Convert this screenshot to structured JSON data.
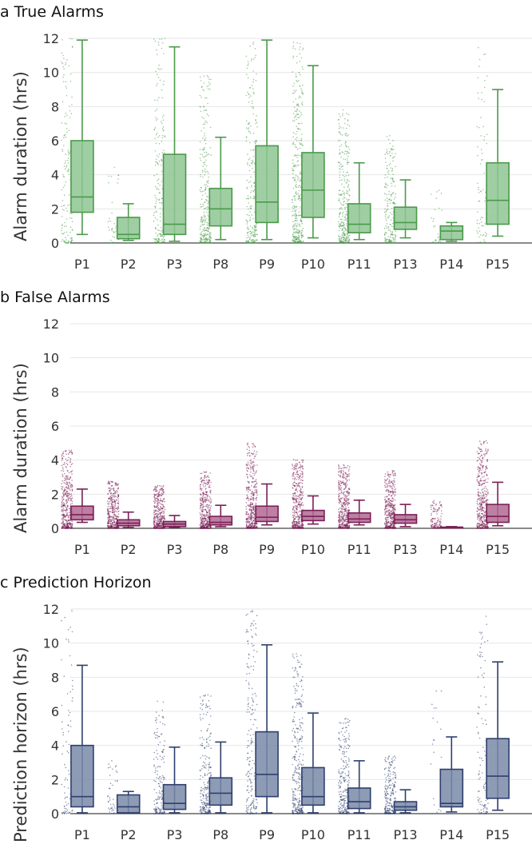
{
  "chart_data": [
    {
      "type": "box",
      "title": "a True Alarms",
      "ylabel": "Alarm duration (hrs)",
      "ylim": [
        0,
        12
      ],
      "yticks": [
        0,
        2,
        4,
        6,
        8,
        10,
        12
      ],
      "color": "#4a9a4a",
      "fill": "#8fc693",
      "categories": [
        "P1",
        "P2",
        "P3",
        "P8",
        "P9",
        "P10",
        "P11",
        "P13",
        "P14",
        "P15"
      ],
      "boxes": [
        {
          "whisker_low": 0.5,
          "q1": 1.8,
          "median": 2.7,
          "q3": 6.0,
          "whisker_high": 11.9
        },
        {
          "whisker_low": 0.15,
          "q1": 0.25,
          "median": 0.5,
          "q3": 1.5,
          "whisker_high": 2.3
        },
        {
          "whisker_low": 0.1,
          "q1": 0.5,
          "median": 1.1,
          "q3": 5.2,
          "whisker_high": 11.5
        },
        {
          "whisker_low": 0.2,
          "q1": 1.0,
          "median": 2.0,
          "q3": 3.2,
          "whisker_high": 6.2
        },
        {
          "whisker_low": 0.2,
          "q1": 1.2,
          "median": 2.4,
          "q3": 5.7,
          "whisker_high": 11.9
        },
        {
          "whisker_low": 0.3,
          "q1": 1.5,
          "median": 3.1,
          "q3": 5.3,
          "whisker_high": 10.4
        },
        {
          "whisker_low": 0.2,
          "q1": 0.6,
          "median": 1.1,
          "q3": 2.3,
          "whisker_high": 4.7
        },
        {
          "whisker_low": 0.3,
          "q1": 0.8,
          "median": 1.2,
          "q3": 2.1,
          "whisker_high": 3.7
        },
        {
          "whisker_low": 0.1,
          "q1": 0.2,
          "median": 0.7,
          "q3": 1.0,
          "whisker_high": 1.2
        },
        {
          "whisker_low": 0.4,
          "q1": 1.1,
          "median": 2.5,
          "q3": 4.7,
          "whisker_high": 9.0
        }
      ],
      "points_density": [
        0.35,
        0.1,
        0.5,
        0.7,
        0.6,
        0.9,
        0.75,
        0.5,
        0.08,
        0.2
      ]
    },
    {
      "type": "box",
      "title": "b False Alarms",
      "ylabel": "Alarm duration (hrs)",
      "ylim": [
        0,
        12
      ],
      "yticks": [
        0,
        2,
        4,
        6,
        8,
        10,
        12
      ],
      "color": "#7a1f55",
      "fill": "#b26a93",
      "categories": [
        "P1",
        "P2",
        "P3",
        "P8",
        "P9",
        "P10",
        "P11",
        "P13",
        "P14",
        "P15"
      ],
      "boxes": [
        {
          "whisker_low": 0.35,
          "q1": 0.5,
          "median": 0.8,
          "q3": 1.3,
          "whisker_high": 2.3
        },
        {
          "whisker_low": 0.05,
          "q1": 0.15,
          "median": 0.3,
          "q3": 0.5,
          "whisker_high": 0.95
        },
        {
          "whisker_low": 0.05,
          "q1": 0.1,
          "median": 0.25,
          "q3": 0.4,
          "whisker_high": 0.75
        },
        {
          "whisker_low": 0.1,
          "q1": 0.2,
          "median": 0.35,
          "q3": 0.7,
          "whisker_high": 1.35
        },
        {
          "whisker_low": 0.2,
          "q1": 0.4,
          "median": 0.65,
          "q3": 1.3,
          "whisker_high": 2.6
        },
        {
          "whisker_low": 0.25,
          "q1": 0.45,
          "median": 0.7,
          "q3": 1.05,
          "whisker_high": 1.9
        },
        {
          "whisker_low": 0.2,
          "q1": 0.35,
          "median": 0.55,
          "q3": 0.9,
          "whisker_high": 1.65
        },
        {
          "whisker_low": 0.1,
          "q1": 0.3,
          "median": 0.5,
          "q3": 0.8,
          "whisker_high": 1.4
        },
        {
          "whisker_low": 0.02,
          "q1": 0.03,
          "median": 0.05,
          "q3": 0.07,
          "whisker_high": 0.1
        },
        {
          "whisker_low": 0.15,
          "q1": 0.35,
          "median": 0.7,
          "q3": 1.4,
          "whisker_high": 2.7
        }
      ],
      "points_density": [
        1.0,
        0.9,
        0.9,
        1.0,
        1.0,
        1.0,
        1.0,
        1.0,
        0.3,
        1.0
      ]
    },
    {
      "type": "box",
      "title": "c Prediction Horizon",
      "ylabel": "Prediction horizon (hrs)",
      "ylim": [
        0,
        12
      ],
      "yticks": [
        0,
        2,
        4,
        6,
        8,
        10,
        12
      ],
      "color": "#2e3f6e",
      "fill": "#7a89a8",
      "categories": [
        "P1",
        "P2",
        "P3",
        "P8",
        "P9",
        "P10",
        "P11",
        "P13",
        "P14",
        "P15"
      ],
      "boxes": [
        {
          "whisker_low": 0.05,
          "q1": 0.4,
          "median": 1.0,
          "q3": 4.0,
          "whisker_high": 8.7
        },
        {
          "whisker_low": 0.02,
          "q1": 0.05,
          "median": 0.4,
          "q3": 1.1,
          "whisker_high": 1.3
        },
        {
          "whisker_low": 0.05,
          "q1": 0.25,
          "median": 0.6,
          "q3": 1.7,
          "whisker_high": 3.9
        },
        {
          "whisker_low": 0.05,
          "q1": 0.5,
          "median": 1.2,
          "q3": 2.1,
          "whisker_high": 4.2
        },
        {
          "whisker_low": 0.05,
          "q1": 1.0,
          "median": 2.3,
          "q3": 4.8,
          "whisker_high": 9.9
        },
        {
          "whisker_low": 0.05,
          "q1": 0.5,
          "median": 1.0,
          "q3": 2.7,
          "whisker_high": 5.9
        },
        {
          "whisker_low": 0.05,
          "q1": 0.3,
          "median": 0.7,
          "q3": 1.5,
          "whisker_high": 3.1
        },
        {
          "whisker_low": 0.05,
          "q1": 0.2,
          "median": 0.4,
          "q3": 0.7,
          "whisker_high": 1.4
        },
        {
          "whisker_low": 0.1,
          "q1": 0.4,
          "median": 0.6,
          "q3": 2.6,
          "whisker_high": 4.5
        },
        {
          "whisker_low": 0.2,
          "q1": 0.9,
          "median": 2.2,
          "q3": 4.4,
          "whisker_high": 8.9
        }
      ],
      "points_density": [
        0.2,
        0.1,
        0.4,
        0.6,
        0.5,
        0.8,
        0.6,
        0.6,
        0.05,
        0.25
      ]
    }
  ]
}
